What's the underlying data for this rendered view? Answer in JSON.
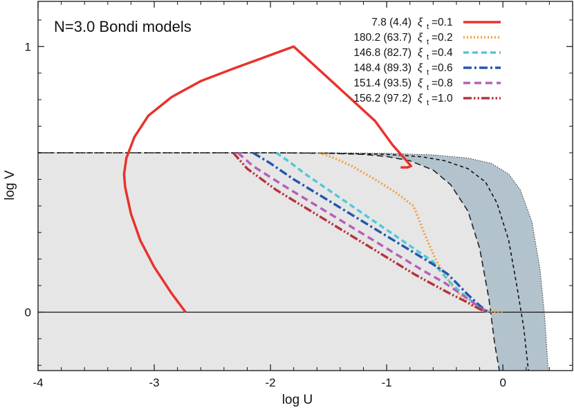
{
  "chart_data": {
    "type": "line",
    "title": "N=3.0 Bondi models",
    "xlabel": "log U",
    "ylabel": "log V",
    "xlim": [
      -4,
      0.6
    ],
    "ylim": [
      -0.22,
      1.17
    ],
    "xticks": [
      {
        "value": -4,
        "label": "-4"
      },
      {
        "value": -3,
        "label": "-3"
      },
      {
        "value": -2,
        "label": "-2"
      },
      {
        "value": -1,
        "label": "-1"
      },
      {
        "value": 0,
        "label": "0"
      }
    ],
    "yticks": [
      {
        "value": 0,
        "label": "0"
      },
      {
        "value": 1,
        "label": "1"
      }
    ],
    "legend_position": "top-right",
    "grid": false,
    "series": [
      {
        "name": "7.8 (4.4)",
        "xi_label": "ξ",
        "xi_sub": "t",
        "xi_value": "=0.1",
        "color": "#e8322c",
        "dash": "solid",
        "x": [
          -2.73,
          -2.85,
          -3.0,
          -3.12,
          -3.2,
          -3.25,
          -3.26,
          -3.24,
          -3.17,
          -3.05,
          -2.85,
          -2.6,
          -2.3,
          -2.05,
          -1.8,
          -1.55,
          -1.3,
          -1.1,
          -0.95,
          -0.87,
          -0.81,
          -0.79,
          -0.82,
          -0.88
        ],
        "y": [
          0.0,
          0.07,
          0.17,
          0.27,
          0.37,
          0.47,
          0.52,
          0.58,
          0.66,
          0.74,
          0.81,
          0.87,
          0.92,
          0.96,
          1.0,
          0.9,
          0.8,
          0.72,
          0.63,
          0.59,
          0.56,
          0.55,
          0.545,
          0.545
        ]
      },
      {
        "name": "180.2 (63.7)",
        "xi_label": "ξ",
        "xi_sub": "t",
        "xi_value": "=0.2",
        "color": "#f2a040",
        "dash": "dot",
        "x": [
          -1.58,
          -1.45,
          -1.3,
          -1.1,
          -0.92,
          -0.77,
          -0.75,
          -0.67,
          -0.58,
          -0.5,
          -0.42,
          -0.34,
          -0.27,
          -0.2,
          -0.13,
          -0.07,
          0.0
        ],
        "y": [
          0.6,
          0.58,
          0.55,
          0.5,
          0.45,
          0.4,
          0.38,
          0.29,
          0.2,
          0.14,
          0.09,
          0.05,
          0.025,
          0.012,
          0.005,
          0.001,
          0.0
        ]
      },
      {
        "name": "146.8 (82.7)",
        "xi_label": "ξ",
        "xi_sub": "t",
        "xi_value": "=0.4",
        "color": "#4ccbd6",
        "dash": "dash",
        "x": [
          -1.95,
          -1.85,
          -1.7,
          -1.5,
          -1.3,
          -1.1,
          -0.9,
          -0.7,
          -0.6,
          -0.55,
          -0.45,
          -0.35,
          -0.25,
          -0.17,
          -0.12
        ],
        "y": [
          0.6,
          0.57,
          0.52,
          0.46,
          0.4,
          0.34,
          0.28,
          0.22,
          0.19,
          0.16,
          0.11,
          0.07,
          0.035,
          0.012,
          0.0
        ]
      },
      {
        "name": "148.4 (89.3)",
        "xi_label": "ξ",
        "xi_sub": "t",
        "xi_value": "=0.6",
        "color": "#2457ad",
        "dash": "dashdot",
        "x": [
          -2.15,
          -2.0,
          -1.8,
          -1.5,
          -1.2,
          -0.9,
          -0.6,
          -0.48,
          -0.4,
          -0.3,
          -0.2,
          -0.13
        ],
        "y": [
          0.6,
          0.56,
          0.5,
          0.42,
          0.34,
          0.26,
          0.18,
          0.145,
          0.11,
          0.065,
          0.025,
          0.0
        ]
      },
      {
        "name": "151.4 (93.5)",
        "xi_label": "ξ",
        "xi_sub": "t",
        "xi_value": "=0.8",
        "color": "#b560b9",
        "dash": "longdash",
        "x": [
          -2.28,
          -2.15,
          -1.9,
          -1.6,
          -1.3,
          -1.0,
          -0.7,
          -0.5,
          -0.35,
          -0.22,
          -0.14
        ],
        "y": [
          0.6,
          0.55,
          0.48,
          0.4,
          0.32,
          0.24,
          0.16,
          0.11,
          0.065,
          0.025,
          0.0
        ]
      },
      {
        "name": "156.2 (97.2)",
        "xi_label": "ξ",
        "xi_sub": "t",
        "xi_value": "=1.0",
        "color": "#b5343d",
        "dash": "dashdotdot",
        "x": [
          -2.32,
          -2.2,
          -1.95,
          -1.65,
          -1.35,
          -1.05,
          -0.75,
          -0.5,
          -0.32,
          -0.2,
          -0.14
        ],
        "y": [
          0.6,
          0.54,
          0.46,
          0.38,
          0.3,
          0.22,
          0.14,
          0.08,
          0.04,
          0.012,
          0.0
        ]
      }
    ],
    "boundary_curves": [
      {
        "role": "shaded-region-inner-edge",
        "style": "long-dash",
        "color": "#222222",
        "x": [
          -4.0,
          -3.0,
          -2.0,
          -1.5,
          -1.2,
          -1.0,
          -0.8,
          -0.6,
          -0.45,
          -0.3,
          -0.2,
          -0.12,
          -0.07,
          -0.03
        ],
        "y": [
          0.6,
          0.6,
          0.6,
          0.598,
          0.594,
          0.586,
          0.57,
          0.535,
          0.48,
          0.38,
          0.24,
          0.05,
          -0.12,
          -0.22
        ]
      },
      {
        "role": "middle",
        "style": "short-dash",
        "color": "#111111",
        "x": [
          -4.0,
          -3.0,
          -2.0,
          -1.5,
          -1.0,
          -0.7,
          -0.5,
          -0.3,
          -0.15,
          -0.05,
          0.05,
          0.12,
          0.18,
          0.22
        ],
        "y": [
          0.6,
          0.6,
          0.6,
          0.599,
          0.594,
          0.585,
          0.57,
          0.54,
          0.49,
          0.41,
          0.27,
          0.1,
          -0.06,
          -0.22
        ]
      },
      {
        "role": "shaded-region-outer-edge",
        "style": "fine-dot",
        "color": "#333333",
        "x": [
          -4.0,
          -3.0,
          -2.0,
          -1.5,
          -1.0,
          -0.6,
          -0.3,
          -0.1,
          0.05,
          0.15,
          0.25,
          0.32,
          0.36,
          0.39
        ],
        "y": [
          0.6,
          0.6,
          0.6,
          0.6,
          0.598,
          0.592,
          0.58,
          0.56,
          0.52,
          0.46,
          0.34,
          0.16,
          -0.02,
          -0.22
        ]
      }
    ],
    "colors": {
      "region_light": "#e6e6e6",
      "region_band": "#b3c3cd"
    }
  }
}
